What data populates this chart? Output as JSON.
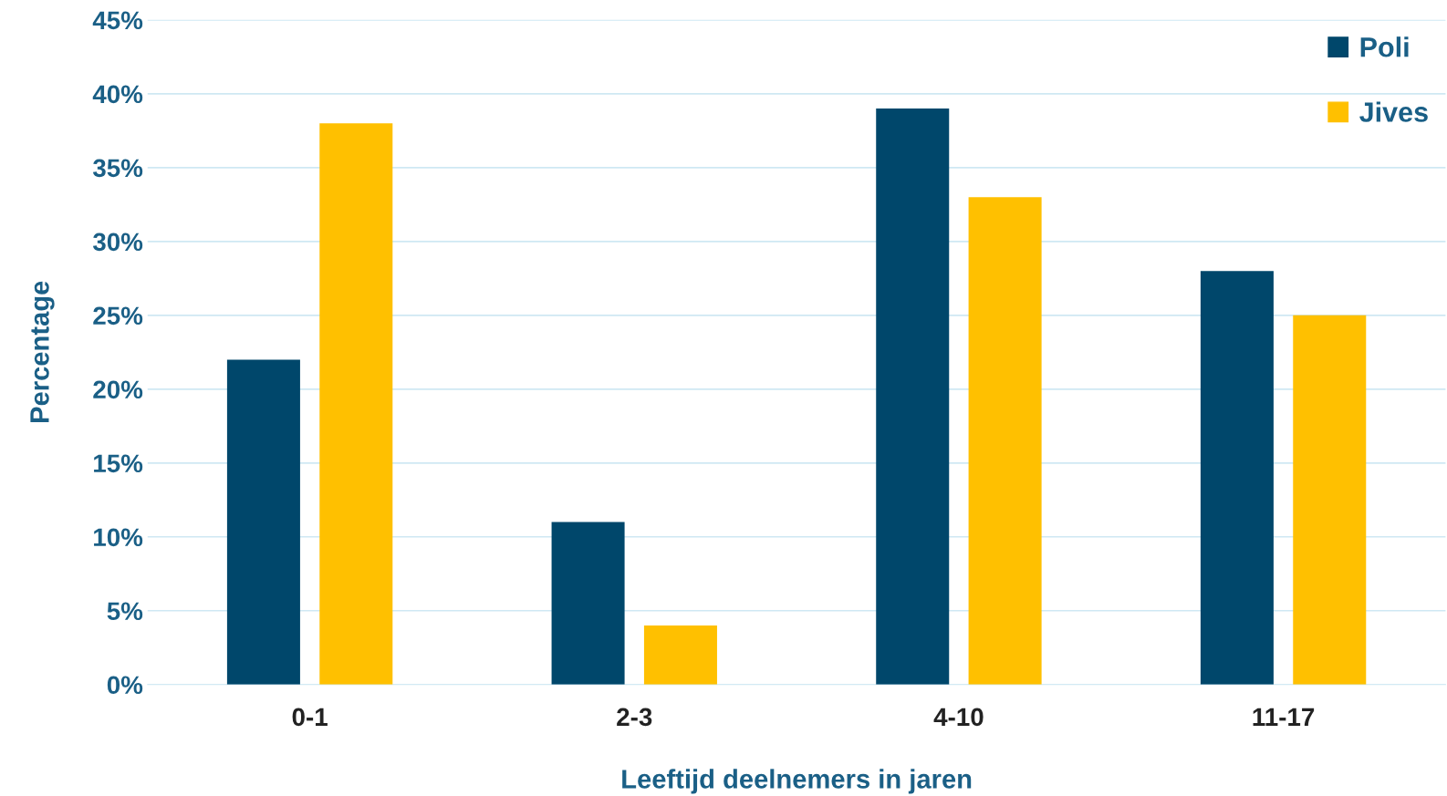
{
  "chart_data": {
    "type": "bar",
    "xlabel": "Leeftijd deelnemers in jaren",
    "ylabel": "Percentage",
    "categories": [
      "0-1",
      "2-3",
      "4-10",
      "11-17"
    ],
    "series": [
      {
        "name": "Poli",
        "color": "#00476b",
        "values": [
          22,
          11,
          39,
          28
        ]
      },
      {
        "name": "Jives",
        "color": "#ffc000",
        "values": [
          38,
          4,
          33,
          25
        ]
      }
    ],
    "ylim": [
      0,
      45
    ],
    "yticks": [
      {
        "value": 0,
        "label": "0%"
      },
      {
        "value": 5,
        "label": "5%"
      },
      {
        "value": 10,
        "label": "10%"
      },
      {
        "value": 15,
        "label": "15%"
      },
      {
        "value": 20,
        "label": "20%"
      },
      {
        "value": 25,
        "label": "25%"
      },
      {
        "value": 30,
        "label": "30%"
      },
      {
        "value": 35,
        "label": "35%"
      },
      {
        "value": 40,
        "label": "40%"
      },
      {
        "value": 45,
        "label": "45%"
      }
    ],
    "grid": "y",
    "legend": "top right"
  }
}
